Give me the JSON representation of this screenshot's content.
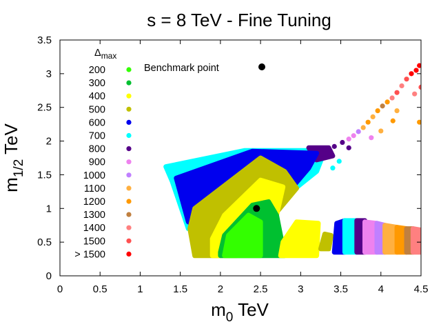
{
  "chart_data": {
    "type": "scatter",
    "title": "s = 8 TeV - Fine Tuning",
    "xlabel": {
      "main": "m",
      "sub": "0",
      "unit": " TeV"
    },
    "ylabel": {
      "main": "m",
      "sub": "1/2",
      "unit": " TeV"
    },
    "xlim": [
      0,
      4.5
    ],
    "ylim": [
      0,
      3.5
    ],
    "xticks": [
      0,
      0.5,
      1,
      1.5,
      2,
      2.5,
      3,
      3.5,
      4,
      4.5
    ],
    "xtick_labels": [
      "0",
      "0.5",
      "1",
      "1.5",
      "2",
      "2.5",
      "3",
      "3.5",
      "4",
      "4.5"
    ],
    "yticks": [
      0,
      0.5,
      1,
      1.5,
      2,
      2.5,
      3,
      3.5
    ],
    "ytick_labels": [
      "0",
      "0.5",
      "1",
      "1.5",
      "2",
      "2.5",
      "3",
      "3.5"
    ],
    "legend_title": {
      "main": "Δ",
      "sub": "max"
    },
    "legend": [
      {
        "label": "200",
        "color": "#33ff00"
      },
      {
        "label": "300",
        "color": "#00c030"
      },
      {
        "label": "400",
        "color": "#ffff00"
      },
      {
        "label": "500",
        "color": "#c0c000"
      },
      {
        "label": "600",
        "color": "#0000ee"
      },
      {
        "label": "700",
        "color": "#00ffff"
      },
      {
        "label": "800",
        "color": "#550088"
      },
      {
        "label": "900",
        "color": "#ee82ee"
      },
      {
        "label": "1000",
        "color": "#c080ff"
      },
      {
        "label": "1100",
        "color": "#ffb040"
      },
      {
        "label": "1200",
        "color": "#ff9900"
      },
      {
        "label": "1300",
        "color": "#c08040"
      },
      {
        "label": "1400",
        "color": "#ff8080"
      },
      {
        "label": "1500",
        "color": "#ff5050"
      },
      {
        "label": "> 1500",
        "color": "#ff0000"
      }
    ],
    "annotation": "Benchmark point",
    "benchmark": {
      "x": 2.45,
      "y": 1.0
    },
    "regions": [
      {
        "name": "main-700",
        "color": "#00ffff",
        "polygon": [
          [
            1.32,
            1.62
          ],
          [
            2.3,
            1.86
          ],
          [
            3.3,
            1.86
          ],
          [
            3.2,
            1.55
          ],
          [
            2.6,
            0.98
          ],
          [
            2.0,
            0.6
          ],
          [
            1.6,
            0.7
          ],
          [
            1.4,
            1.4
          ]
        ]
      },
      {
        "name": "main-800",
        "color": "#550088",
        "polygon": [
          [
            3.1,
            1.9
          ],
          [
            3.35,
            1.9
          ],
          [
            3.4,
            1.78
          ],
          [
            3.2,
            1.72
          ]
        ]
      },
      {
        "name": "main-600",
        "color": "#0000ee",
        "polygon": [
          [
            1.45,
            1.45
          ],
          [
            2.4,
            1.85
          ],
          [
            3.2,
            1.82
          ],
          [
            3.1,
            1.6
          ],
          [
            2.6,
            0.9
          ],
          [
            2.0,
            0.55
          ],
          [
            1.6,
            0.8
          ]
        ]
      },
      {
        "name": "main-500",
        "color": "#c0c000",
        "polygon": [
          [
            1.62,
            0.7
          ],
          [
            1.68,
            1.0
          ],
          [
            2.5,
            1.75
          ],
          [
            2.8,
            1.55
          ],
          [
            2.95,
            1.3
          ],
          [
            2.6,
            0.8
          ],
          [
            2.35,
            0.52
          ],
          [
            2.0,
            0.3
          ],
          [
            1.68,
            0.3
          ],
          [
            1.65,
            0.5
          ]
        ]
      },
      {
        "name": "main-400",
        "color": "#ffff00",
        "polygon": [
          [
            1.9,
            0.55
          ],
          [
            2.05,
            0.9
          ],
          [
            2.5,
            1.42
          ],
          [
            2.78,
            1.32
          ],
          [
            2.7,
            0.9
          ],
          [
            2.5,
            0.55
          ],
          [
            2.2,
            0.3
          ],
          [
            1.9,
            0.3
          ]
        ]
      },
      {
        "name": "main-300",
        "color": "#00c030",
        "polygon": [
          [
            2.0,
            0.35
          ],
          [
            2.05,
            0.6
          ],
          [
            2.4,
            1.05
          ],
          [
            2.6,
            1.1
          ],
          [
            2.7,
            0.9
          ],
          [
            2.75,
            0.6
          ],
          [
            2.8,
            0.3
          ],
          [
            2.0,
            0.3
          ]
        ]
      },
      {
        "name": "main-200",
        "color": "#33ff00",
        "polygon": [
          [
            2.05,
            0.3
          ],
          [
            2.1,
            0.6
          ],
          [
            2.35,
            0.9
          ],
          [
            2.5,
            0.8
          ],
          [
            2.5,
            0.3
          ]
        ]
      },
      {
        "name": "lower-400",
        "color": "#ffff00",
        "polygon": [
          [
            2.75,
            0.3
          ],
          [
            3.2,
            0.3
          ],
          [
            3.22,
            0.78
          ],
          [
            2.95,
            0.8
          ],
          [
            2.78,
            0.5
          ]
        ]
      },
      {
        "name": "lower-500",
        "color": "#c0c000",
        "polygon": [
          [
            3.25,
            0.4
          ],
          [
            3.35,
            0.4
          ],
          [
            3.38,
            0.6
          ],
          [
            3.3,
            0.62
          ]
        ]
      },
      {
        "name": "lower-600",
        "color": "#0000ee",
        "polygon": [
          [
            3.42,
            0.35
          ],
          [
            3.55,
            0.35
          ],
          [
            3.55,
            0.82
          ],
          [
            3.45,
            0.78
          ]
        ]
      },
      {
        "name": "lower-700",
        "color": "#00ffff",
        "polygon": [
          [
            3.55,
            0.35
          ],
          [
            3.7,
            0.35
          ],
          [
            3.7,
            0.82
          ],
          [
            3.55,
            0.82
          ]
        ]
      },
      {
        "name": "lower-800",
        "color": "#550088",
        "polygon": [
          [
            3.7,
            0.35
          ],
          [
            3.8,
            0.35
          ],
          [
            3.8,
            0.82
          ],
          [
            3.7,
            0.82
          ]
        ]
      },
      {
        "name": "lower-900",
        "color": "#ee82ee",
        "polygon": [
          [
            3.8,
            0.35
          ],
          [
            3.95,
            0.35
          ],
          [
            3.95,
            0.78
          ],
          [
            3.8,
            0.8
          ]
        ]
      },
      {
        "name": "lower-1000",
        "color": "#c080ff",
        "polygon": [
          [
            3.95,
            0.35
          ],
          [
            4.05,
            0.35
          ],
          [
            4.05,
            0.75
          ],
          [
            3.95,
            0.78
          ]
        ]
      },
      {
        "name": "lower-1100",
        "color": "#ffb040",
        "polygon": [
          [
            4.05,
            0.35
          ],
          [
            4.2,
            0.35
          ],
          [
            4.2,
            0.72
          ],
          [
            4.05,
            0.75
          ]
        ]
      },
      {
        "name": "lower-1200",
        "color": "#ff9900",
        "polygon": [
          [
            4.2,
            0.35
          ],
          [
            4.32,
            0.35
          ],
          [
            4.32,
            0.7
          ],
          [
            4.2,
            0.72
          ]
        ]
      },
      {
        "name": "lower-1300",
        "color": "#c08040",
        "polygon": [
          [
            4.32,
            0.35
          ],
          [
            4.4,
            0.35
          ],
          [
            4.4,
            0.7
          ],
          [
            4.32,
            0.7
          ]
        ]
      },
      {
        "name": "lower-1400",
        "color": "#ff8080",
        "polygon": [
          [
            4.4,
            0.35
          ],
          [
            4.5,
            0.35
          ],
          [
            4.5,
            0.68
          ],
          [
            4.4,
            0.7
          ]
        ]
      }
    ],
    "strip": [
      {
        "x": 3.3,
        "y": 1.88,
        "color": "#550088"
      },
      {
        "x": 3.42,
        "y": 1.92,
        "color": "#550088"
      },
      {
        "x": 3.52,
        "y": 1.98,
        "color": "#550088"
      },
      {
        "x": 3.6,
        "y": 2.03,
        "color": "#ee82ee"
      },
      {
        "x": 3.66,
        "y": 2.08,
        "color": "#ee82ee"
      },
      {
        "x": 3.72,
        "y": 2.14,
        "color": "#c080ff"
      },
      {
        "x": 3.78,
        "y": 2.2,
        "color": "#ffb040"
      },
      {
        "x": 3.84,
        "y": 2.28,
        "color": "#ff9900"
      },
      {
        "x": 3.9,
        "y": 2.36,
        "color": "#ffb040"
      },
      {
        "x": 3.96,
        "y": 2.45,
        "color": "#ff9900"
      },
      {
        "x": 4.02,
        "y": 2.52,
        "color": "#c08040"
      },
      {
        "x": 4.08,
        "y": 2.58,
        "color": "#ff9900"
      },
      {
        "x": 4.14,
        "y": 2.64,
        "color": "#ff8080"
      },
      {
        "x": 4.2,
        "y": 2.72,
        "color": "#ff5050"
      },
      {
        "x": 4.26,
        "y": 2.82,
        "color": "#ff8080"
      },
      {
        "x": 4.32,
        "y": 2.92,
        "color": "#ff5050"
      },
      {
        "x": 4.38,
        "y": 3.0,
        "color": "#ff0000"
      },
      {
        "x": 4.44,
        "y": 3.05,
        "color": "#ff0000"
      },
      {
        "x": 4.48,
        "y": 3.12,
        "color": "#ff0000"
      },
      {
        "x": 3.4,
        "y": 1.6,
        "color": "#00ffff"
      },
      {
        "x": 3.48,
        "y": 1.7,
        "color": "#00ffff"
      },
      {
        "x": 3.6,
        "y": 1.9,
        "color": "#550088"
      },
      {
        "x": 3.88,
        "y": 2.05,
        "color": "#ee82ee"
      },
      {
        "x": 4.0,
        "y": 2.15,
        "color": "#ffb040"
      },
      {
        "x": 4.2,
        "y": 2.45,
        "color": "#ffb040"
      },
      {
        "x": 4.15,
        "y": 2.3,
        "color": "#ff9900"
      },
      {
        "x": 4.42,
        "y": 2.7,
        "color": "#ff8080"
      },
      {
        "x": 4.5,
        "y": 2.8,
        "color": "#ff5050"
      },
      {
        "x": 4.48,
        "y": 2.28,
        "color": "#ff9900"
      }
    ]
  }
}
